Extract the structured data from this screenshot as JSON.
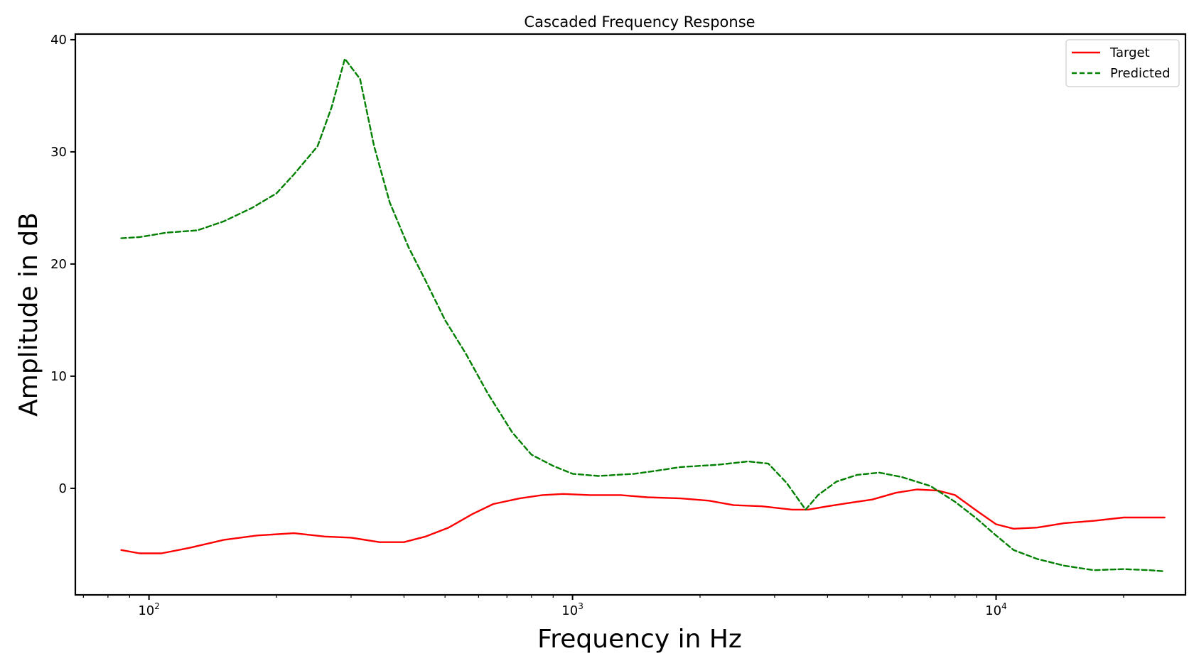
{
  "chart_data": {
    "type": "line",
    "title": "Cascaded Frequency Response",
    "xlabel": "Frequency in Hz",
    "ylabel": "Amplitude in dB",
    "xscale": "log",
    "xlim": [
      67,
      28000
    ],
    "ylim": [
      -9.5,
      40.5
    ],
    "grid": false,
    "legend_position": "top-right",
    "y_ticks": [
      0,
      10,
      20,
      30,
      40
    ],
    "y_tick_labels": [
      "0",
      "10",
      "20",
      "30",
      "40"
    ],
    "x_ticks": [
      {
        "value": 100,
        "base": "10",
        "exp": "2"
      },
      {
        "value": 1000,
        "base": "10",
        "exp": "3"
      },
      {
        "value": 10000,
        "base": "10",
        "exp": "4"
      }
    ],
    "series": [
      {
        "name": "Target",
        "color": "#ff0000",
        "style": "solid",
        "points": [
          [
            86,
            -5.5
          ],
          [
            95,
            -5.8
          ],
          [
            107,
            -5.8
          ],
          [
            125,
            -5.3
          ],
          [
            150,
            -4.6
          ],
          [
            180,
            -4.2
          ],
          [
            220,
            -4.0
          ],
          [
            260,
            -4.3
          ],
          [
            300,
            -4.4
          ],
          [
            350,
            -4.8
          ],
          [
            400,
            -4.8
          ],
          [
            450,
            -4.3
          ],
          [
            510,
            -3.5
          ],
          [
            580,
            -2.3
          ],
          [
            650,
            -1.4
          ],
          [
            750,
            -0.9
          ],
          [
            850,
            -0.6
          ],
          [
            950,
            -0.5
          ],
          [
            1100,
            -0.6
          ],
          [
            1300,
            -0.6
          ],
          [
            1500,
            -0.8
          ],
          [
            1800,
            -0.9
          ],
          [
            2100,
            -1.1
          ],
          [
            2400,
            -1.5
          ],
          [
            2800,
            -1.6
          ],
          [
            3300,
            -1.9
          ],
          [
            3600,
            -1.9
          ],
          [
            4000,
            -1.6
          ],
          [
            4500,
            -1.3
          ],
          [
            5100,
            -1.0
          ],
          [
            5800,
            -0.4
          ],
          [
            6500,
            -0.1
          ],
          [
            7300,
            -0.2
          ],
          [
            8000,
            -0.6
          ],
          [
            9000,
            -2.0
          ],
          [
            10000,
            -3.2
          ],
          [
            11000,
            -3.6
          ],
          [
            12500,
            -3.5
          ],
          [
            14500,
            -3.1
          ],
          [
            17000,
            -2.9
          ],
          [
            20000,
            -2.6
          ],
          [
            23000,
            -2.6
          ],
          [
            25000,
            -2.6
          ]
        ]
      },
      {
        "name": "Predicted",
        "color": "#008000",
        "style": "dashed",
        "points": [
          [
            86,
            22.3
          ],
          [
            95,
            22.4
          ],
          [
            110,
            22.8
          ],
          [
            130,
            23.0
          ],
          [
            150,
            23.8
          ],
          [
            175,
            25.0
          ],
          [
            200,
            26.3
          ],
          [
            220,
            28.0
          ],
          [
            250,
            30.5
          ],
          [
            270,
            34.0
          ],
          [
            290,
            38.3
          ],
          [
            315,
            36.5
          ],
          [
            340,
            30.5
          ],
          [
            370,
            25.5
          ],
          [
            410,
            21.5
          ],
          [
            450,
            18.5
          ],
          [
            500,
            15.0
          ],
          [
            560,
            12.0
          ],
          [
            630,
            8.5
          ],
          [
            720,
            5.0
          ],
          [
            800,
            3.0
          ],
          [
            900,
            2.0
          ],
          [
            1000,
            1.3
          ],
          [
            1150,
            1.1
          ],
          [
            1400,
            1.3
          ],
          [
            1600,
            1.6
          ],
          [
            1800,
            1.9
          ],
          [
            2200,
            2.1
          ],
          [
            2600,
            2.4
          ],
          [
            2900,
            2.2
          ],
          [
            3200,
            0.5
          ],
          [
            3550,
            -1.9
          ],
          [
            3800,
            -0.6
          ],
          [
            4200,
            0.6
          ],
          [
            4700,
            1.2
          ],
          [
            5300,
            1.4
          ],
          [
            6000,
            1.0
          ],
          [
            7000,
            0.2
          ],
          [
            8000,
            -1.2
          ],
          [
            9000,
            -2.7
          ],
          [
            10000,
            -4.2
          ],
          [
            11000,
            -5.5
          ],
          [
            12500,
            -6.3
          ],
          [
            14500,
            -6.9
          ],
          [
            17000,
            -7.3
          ],
          [
            20000,
            -7.2
          ],
          [
            23000,
            -7.3
          ],
          [
            25000,
            -7.4
          ]
        ]
      }
    ]
  }
}
